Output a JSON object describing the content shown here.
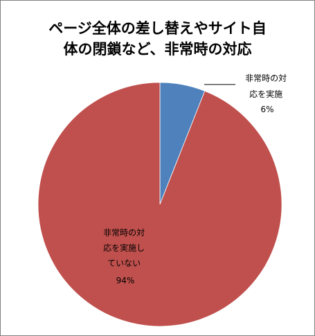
{
  "chart_data": {
    "type": "pie",
    "title_lines": [
      "ページ全体の差し替えやサイト自",
      "体の閉鎖など、非常時の対応"
    ],
    "slices": [
      {
        "label_lines": [
          "非常時の対",
          "応を実施"
        ],
        "value": 6,
        "value_label": "6%",
        "color": "#4f81bd"
      },
      {
        "label_lines": [
          "非常時の対",
          "応を実施し",
          "ていない"
        ],
        "value": 94,
        "value_label": "94%",
        "color": "#c0504d"
      }
    ],
    "start_angle_deg": 0,
    "direction": "clockwise"
  }
}
